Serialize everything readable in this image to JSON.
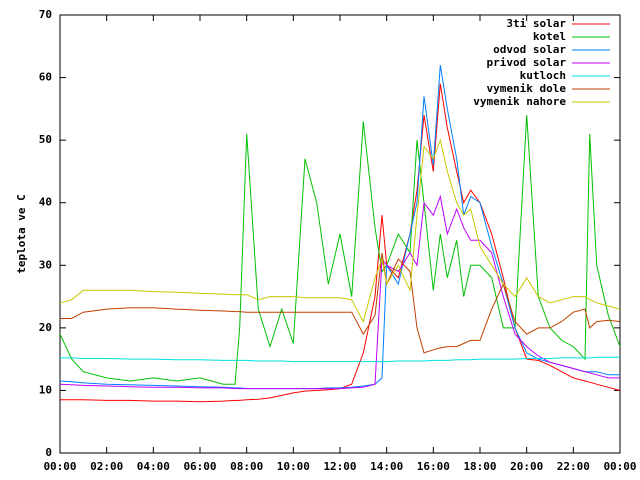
{
  "chart_data": {
    "type": "line",
    "y_label": "teplota ve C",
    "x": [
      0,
      0.5,
      1,
      2,
      3,
      4,
      5,
      6,
      7,
      7.5,
      7.7,
      8,
      8.5,
      9,
      9.5,
      10,
      10.5,
      11,
      11.5,
      12,
      12.5,
      13,
      13.5,
      13.8,
      14,
      14.5,
      15,
      15.3,
      15.6,
      16,
      16.3,
      16.6,
      17,
      17.3,
      17.6,
      18,
      18.5,
      19,
      19.5,
      20,
      20.5,
      21,
      21.5,
      22,
      22.5,
      22.7,
      23,
      23.5,
      24
    ],
    "xlim": [
      0,
      24
    ],
    "xticks": [
      {
        "value": 0,
        "label": "00:00"
      },
      {
        "value": 2,
        "label": "02:00"
      },
      {
        "value": 4,
        "label": "04:00"
      },
      {
        "value": 6,
        "label": "06:00"
      },
      {
        "value": 8,
        "label": "08:00"
      },
      {
        "value": 10,
        "label": "10:00"
      },
      {
        "value": 12,
        "label": "12:00"
      },
      {
        "value": 14,
        "label": "14:00"
      },
      {
        "value": 16,
        "label": "16:00"
      },
      {
        "value": 18,
        "label": "18:00"
      },
      {
        "value": 20,
        "label": "20:00"
      },
      {
        "value": 22,
        "label": "22:00"
      },
      {
        "value": 24,
        "label": "00:00"
      }
    ],
    "ylim": [
      0,
      70
    ],
    "yticks": [
      0,
      10,
      20,
      30,
      40,
      50,
      60,
      70
    ],
    "legend": "top-right",
    "series": [
      {
        "name": "3ti solar",
        "color": "#ff0000",
        "values": [
          8.5,
          8.5,
          8.5,
          8.4,
          8.4,
          8.3,
          8.3,
          8.2,
          8.3,
          8.4,
          8.4,
          8.5,
          8.6,
          8.8,
          9.2,
          9.6,
          9.9,
          10,
          10.1,
          10.3,
          11,
          16,
          25,
          38,
          30,
          28,
          35,
          42,
          54,
          45,
          59,
          52,
          45,
          40,
          42,
          40,
          35,
          28,
          20,
          15,
          14.8,
          14,
          13,
          12,
          11.5,
          11.3,
          11,
          10.5,
          10
        ]
      },
      {
        "name": "kotel",
        "color": "#00c000",
        "values": [
          19,
          15,
          13,
          12,
          11.5,
          12,
          11.5,
          12,
          11,
          11,
          20,
          51,
          23,
          17,
          23,
          17.5,
          47,
          40,
          27,
          35,
          25,
          53,
          36,
          29,
          30,
          35,
          32,
          50,
          40,
          26,
          35,
          28,
          34,
          25,
          30,
          30,
          28,
          20,
          20,
          54,
          25,
          20,
          18,
          17,
          15,
          51,
          30,
          22,
          17
        ]
      },
      {
        "name": "odvod solar",
        "color": "#0080ff",
        "values": [
          11.5,
          11.4,
          11.2,
          11,
          10.9,
          10.8,
          10.7,
          10.6,
          10.5,
          10.4,
          10.4,
          10.3,
          10.3,
          10.3,
          10.3,
          10.3,
          10.3,
          10.3,
          10.4,
          10.4,
          10.5,
          10.7,
          11,
          12,
          30,
          27,
          35,
          40,
          57,
          46,
          62,
          55,
          47,
          38,
          41,
          40,
          33,
          27,
          20,
          16,
          15,
          14.5,
          14,
          13.5,
          13,
          13,
          13,
          12.5,
          12.5
        ]
      },
      {
        "name": "privod solar",
        "color": "#c000ff",
        "values": [
          11,
          10.9,
          10.8,
          10.7,
          10.6,
          10.5,
          10.5,
          10.4,
          10.4,
          10.3,
          10.3,
          10.3,
          10.3,
          10.3,
          10.3,
          10.3,
          10.3,
          10.3,
          10.3,
          10.3,
          10.4,
          10.5,
          11,
          31,
          30,
          29,
          32,
          30,
          40,
          38,
          41,
          35,
          39,
          36,
          34,
          34,
          32,
          25,
          19,
          17,
          15.5,
          14.5,
          14,
          13.5,
          13,
          12.8,
          12.5,
          12,
          12
        ]
      },
      {
        "name": "kutloch",
        "color": "#00e0e0",
        "values": [
          15.2,
          15.2,
          15.1,
          15.1,
          15,
          15,
          14.9,
          14.9,
          14.8,
          14.8,
          14.8,
          14.8,
          14.7,
          14.7,
          14.7,
          14.6,
          14.6,
          14.6,
          14.6,
          14.6,
          14.6,
          14.6,
          14.6,
          14.6,
          14.6,
          14.7,
          14.7,
          14.7,
          14.7,
          14.8,
          14.8,
          14.8,
          14.9,
          14.9,
          14.9,
          15,
          15,
          15,
          15,
          15.1,
          15.1,
          15.1,
          15.2,
          15.2,
          15.2,
          15.2,
          15.3,
          15.3,
          15.3
        ]
      },
      {
        "name": "vymenik dole",
        "color": "#c04000",
        "values": [
          21.5,
          21.5,
          22.5,
          23,
          23.2,
          23.2,
          23,
          22.8,
          22.7,
          22.6,
          22.6,
          22.5,
          22.5,
          22.5,
          22.5,
          22.5,
          22.5,
          22.5,
          22.5,
          22.5,
          22.5,
          19,
          22,
          32,
          27,
          31,
          29,
          20,
          16,
          16.5,
          16.8,
          17,
          17,
          17.5,
          18,
          18,
          23,
          27,
          21,
          19,
          20,
          20,
          21,
          22.5,
          23,
          20,
          21,
          21.2,
          21
        ]
      },
      {
        "name": "vymenik nahore",
        "color": "#c8c800",
        "values": [
          24,
          24.5,
          26,
          26,
          26,
          25.8,
          25.7,
          25.5,
          25.4,
          25.3,
          25.3,
          25.3,
          24.5,
          25,
          25,
          25,
          24.8,
          24.8,
          24.8,
          24.8,
          24.5,
          21,
          28,
          31,
          27,
          30,
          26,
          38,
          49,
          47,
          50,
          45,
          40,
          38,
          39,
          33,
          30,
          27,
          25,
          28,
          25,
          24,
          24.5,
          25,
          25,
          24.5,
          24,
          23.5,
          23
        ]
      }
    ]
  }
}
